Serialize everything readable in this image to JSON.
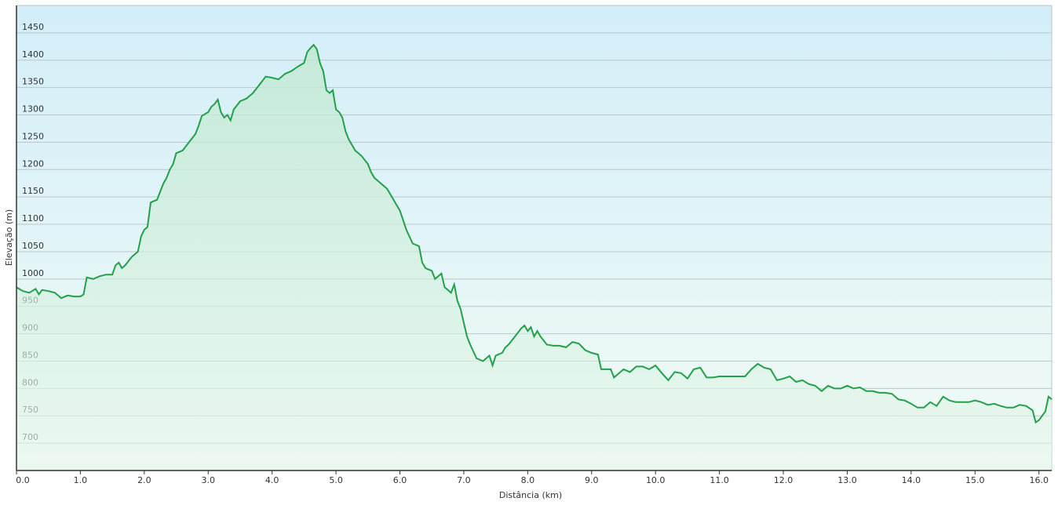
{
  "chart_data": {
    "type": "line",
    "x_label": "Distância  (km)",
    "y_label": "Elevação (m)",
    "xlim": [
      0,
      16.2
    ],
    "ylim": [
      650,
      1500
    ],
    "xticks": [
      {
        "value": 0,
        "label": "0.0"
      },
      {
        "value": 1,
        "label": "1.0"
      },
      {
        "value": 2,
        "label": "2.0"
      },
      {
        "value": 3,
        "label": "3.0"
      },
      {
        "value": 4,
        "label": "4.0"
      },
      {
        "value": 5,
        "label": "5.0"
      },
      {
        "value": 6,
        "label": "6.0"
      },
      {
        "value": 7,
        "label": "7.0"
      },
      {
        "value": 8,
        "label": "8.0"
      },
      {
        "value": 9,
        "label": "9.0"
      },
      {
        "value": 10,
        "label": "10.0"
      },
      {
        "value": 11,
        "label": "11.0"
      },
      {
        "value": 12,
        "label": "12.0"
      },
      {
        "value": 13,
        "label": "13.0"
      },
      {
        "value": 14,
        "label": "14.0"
      },
      {
        "value": 15,
        "label": "15.0"
      },
      {
        "value": 16,
        "label": "16.0"
      }
    ],
    "yticks": [
      700,
      750,
      800,
      850,
      900,
      950,
      1000,
      1050,
      1100,
      1150,
      1200,
      1250,
      1300,
      1350,
      1400,
      1450
    ],
    "grid": true,
    "series": [
      {
        "color": "#22a04a",
        "x": [
          0.0,
          0.1,
          0.2,
          0.3,
          0.35,
          0.4,
          0.5,
          0.6,
          0.7,
          0.8,
          0.9,
          1.0,
          1.05,
          1.1,
          1.2,
          1.3,
          1.4,
          1.5,
          1.55,
          1.6,
          1.65,
          1.7,
          1.8,
          1.9,
          1.95,
          2.0,
          2.05,
          2.1,
          2.2,
          2.25,
          2.3,
          2.35,
          2.4,
          2.45,
          2.5,
          2.6,
          2.7,
          2.8,
          2.85,
          2.9,
          3.0,
          3.05,
          3.1,
          3.15,
          3.2,
          3.25,
          3.3,
          3.35,
          3.4,
          3.5,
          3.6,
          3.7,
          3.8,
          3.9,
          4.0,
          4.1,
          4.2,
          4.3,
          4.4,
          4.5,
          4.55,
          4.6,
          4.65,
          4.7,
          4.75,
          4.8,
          4.85,
          4.9,
          4.95,
          5.0,
          5.05,
          5.1,
          5.15,
          5.2,
          5.3,
          5.4,
          5.5,
          5.55,
          5.6,
          5.7,
          5.8,
          5.9,
          6.0,
          6.1,
          6.2,
          6.3,
          6.35,
          6.4,
          6.5,
          6.55,
          6.6,
          6.65,
          6.7,
          6.8,
          6.85,
          6.9,
          6.95,
          7.0,
          7.05,
          7.1,
          7.2,
          7.3,
          7.4,
          7.45,
          7.5,
          7.6,
          7.65,
          7.7,
          7.8,
          7.9,
          7.95,
          8.0,
          8.05,
          8.1,
          8.15,
          8.2,
          8.3,
          8.4,
          8.5,
          8.6,
          8.7,
          8.8,
          8.9,
          9.0,
          9.1,
          9.15,
          9.3,
          9.35,
          9.5,
          9.6,
          9.7,
          9.8,
          9.9,
          10.0,
          10.1,
          10.2,
          10.3,
          10.4,
          10.5,
          10.6,
          10.7,
          10.8,
          10.9,
          11.0,
          11.2,
          11.4,
          11.5,
          11.6,
          11.7,
          11.8,
          11.9,
          12.0,
          12.1,
          12.2,
          12.3,
          12.4,
          12.5,
          12.6,
          12.7,
          12.8,
          12.9,
          13.0,
          13.1,
          13.2,
          13.3,
          13.4,
          13.5,
          13.6,
          13.7,
          13.8,
          13.9,
          14.0,
          14.1,
          14.2,
          14.3,
          14.4,
          14.5,
          14.6,
          14.7,
          14.8,
          14.9,
          15.0,
          15.1,
          15.2,
          15.3,
          15.4,
          15.5,
          15.6,
          15.7,
          15.8,
          15.9,
          15.95,
          16.0,
          16.1,
          16.15,
          16.2
        ],
        "values": [
          985,
          978,
          975,
          982,
          972,
          980,
          978,
          975,
          965,
          970,
          968,
          968,
          972,
          1003,
          1000,
          1005,
          1008,
          1008,
          1025,
          1030,
          1020,
          1025,
          1040,
          1050,
          1078,
          1090,
          1095,
          1140,
          1145,
          1160,
          1175,
          1185,
          1200,
          1210,
          1230,
          1235,
          1250,
          1265,
          1280,
          1298,
          1305,
          1315,
          1320,
          1328,
          1305,
          1295,
          1300,
          1290,
          1310,
          1325,
          1330,
          1340,
          1355,
          1370,
          1368,
          1365,
          1375,
          1380,
          1388,
          1395,
          1415,
          1422,
          1428,
          1420,
          1395,
          1380,
          1345,
          1340,
          1345,
          1310,
          1305,
          1295,
          1270,
          1255,
          1235,
          1225,
          1210,
          1195,
          1185,
          1175,
          1165,
          1145,
          1125,
          1090,
          1065,
          1060,
          1030,
          1020,
          1015,
          1000,
          1005,
          1010,
          985,
          975,
          990,
          960,
          945,
          920,
          895,
          880,
          855,
          850,
          860,
          842,
          860,
          865,
          875,
          880,
          895,
          910,
          915,
          905,
          912,
          895,
          905,
          895,
          880,
          878,
          878,
          875,
          885,
          882,
          870,
          865,
          862,
          835,
          835,
          820,
          835,
          830,
          840,
          840,
          835,
          842,
          828,
          815,
          830,
          828,
          818,
          835,
          838,
          820,
          820,
          822,
          822,
          822,
          835,
          845,
          838,
          835,
          815,
          818,
          822,
          812,
          815,
          808,
          805,
          795,
          805,
          800,
          800,
          805,
          800,
          802,
          795,
          795,
          792,
          792,
          790,
          780,
          778,
          772,
          765,
          765,
          775,
          768,
          785,
          778,
          775,
          775,
          775,
          778,
          775,
          770,
          772,
          768,
          765,
          765,
          770,
          768,
          760,
          738,
          742,
          758,
          785,
          780
        ]
      }
    ]
  }
}
